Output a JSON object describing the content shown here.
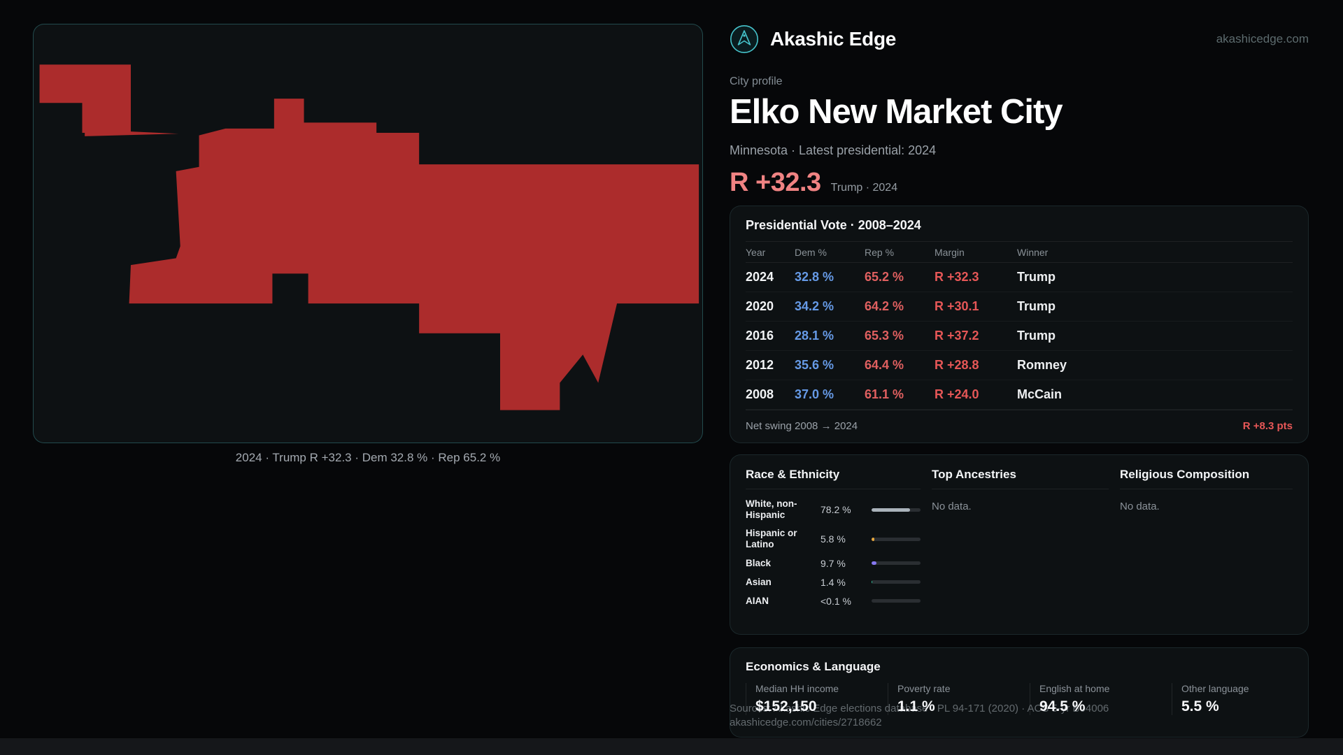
{
  "theme": {
    "accent_teal": "#46c3cb",
    "dem_blue": "#669ae6",
    "rep_red": "#e06060",
    "headline_red": "#f08383"
  },
  "brand": {
    "name": "Akashic Edge",
    "domain": "akashicedge.com",
    "logo_icon": "akashic-edge-circle-logo"
  },
  "profile": {
    "kicker": "City profile",
    "title": "Elko New Market City",
    "subtitle": "Minnesota · Latest presidential: 2024",
    "headline_margin": "R +32.3",
    "headline_context": "Trump · 2024"
  },
  "map": {
    "fill": "#ac2c2c",
    "caption": "2024 · Trump R +32.3 · Dem 32.8 % · Rep 65.2 %"
  },
  "presidential": {
    "title": "Presidential Vote · 2008–2024",
    "columns": [
      "Year",
      "Dem %",
      "Rep %",
      "Margin",
      "Winner"
    ],
    "rows": [
      {
        "year": "2024",
        "dem": "32.8 %",
        "rep": "65.2 %",
        "margin": "R +32.3",
        "winner": "Trump"
      },
      {
        "year": "2020",
        "dem": "34.2 %",
        "rep": "64.2 %",
        "margin": "R +30.1",
        "winner": "Trump"
      },
      {
        "year": "2016",
        "dem": "28.1 %",
        "rep": "65.3 %",
        "margin": "R +37.2",
        "winner": "Trump"
      },
      {
        "year": "2012",
        "dem": "35.6 %",
        "rep": "64.4 %",
        "margin": "R +28.8",
        "winner": "Romney"
      },
      {
        "year": "2008",
        "dem": "37.0 %",
        "rep": "61.1 %",
        "margin": "R +24.0",
        "winner": "McCain"
      }
    ],
    "net_swing_label": "Net swing 2008 → 2024",
    "net_swing_value": "R +8.3 pts"
  },
  "demographics": {
    "race": {
      "title": "Race & Ethnicity",
      "rows": [
        {
          "label": "White, non-Hispanic",
          "value": "78.2 %",
          "pct": 78.2,
          "color": "#aab3bb"
        },
        {
          "label": "Hispanic or Latino",
          "value": "5.8 %",
          "pct": 5.8,
          "color": "#e8a83e"
        },
        {
          "label": "Black",
          "value": "9.7 %",
          "pct": 9.7,
          "color": "#8678f0"
        },
        {
          "label": "Asian",
          "value": "1.4 %",
          "pct": 1.4,
          "color": "#2fbf9a"
        },
        {
          "label": "AIAN",
          "value": "<0.1 %",
          "pct": 0,
          "color": "#d96a6a"
        }
      ]
    },
    "ancestries": {
      "title": "Top Ancestries",
      "empty": "No data."
    },
    "religion": {
      "title": "Religious Composition",
      "empty": "No data."
    }
  },
  "economics": {
    "title": "Economics & Language",
    "stats": [
      {
        "label": "Median HH income",
        "value": "$152,150"
      },
      {
        "label": "Poverty rate",
        "value": "1.1 %"
      },
      {
        "label": "English at home",
        "value": "94.5 %"
      },
      {
        "label": "Other language",
        "value": "5.5 %"
      }
    ]
  },
  "footer": {
    "sources": "Sources: Akashic Edge elections database · PL 94-171 (2020) · ACS 5-yr B04006",
    "permalink": "akashicedge.com/cities/2718662"
  }
}
